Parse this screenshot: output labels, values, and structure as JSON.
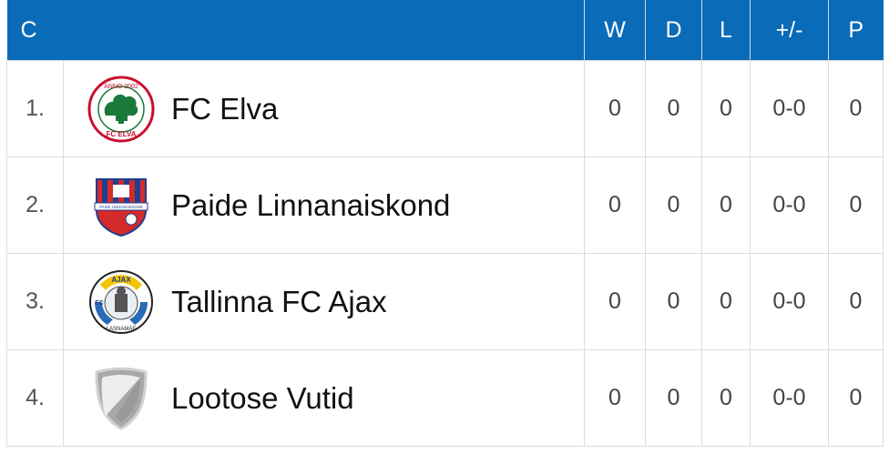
{
  "table": {
    "group_label": "C",
    "columns": [
      "W",
      "D",
      "L",
      "+/-",
      "P"
    ],
    "rows": [
      {
        "pos": "1.",
        "team": "FC Elva",
        "logo": "fc-elva-crest-icon",
        "w": "0",
        "d": "0",
        "l": "0",
        "gd": "0-0",
        "p": "0"
      },
      {
        "pos": "2.",
        "team": "Paide Linnanaiskond",
        "logo": "paide-crest-icon",
        "w": "0",
        "d": "0",
        "l": "0",
        "gd": "0-0",
        "p": "0"
      },
      {
        "pos": "3.",
        "team": "Tallinna FC Ajax",
        "logo": "ajax-crest-icon",
        "w": "0",
        "d": "0",
        "l": "0",
        "gd": "0-0",
        "p": "0"
      },
      {
        "pos": "4.",
        "team": "Lootose Vutid",
        "logo": "generic-shield-icon",
        "w": "0",
        "d": "0",
        "l": "0",
        "gd": "0-0",
        "p": "0"
      }
    ]
  },
  "logos": {
    "elva_top_text": "ANNO 2002",
    "elva_bottom_text": "FC ELVA",
    "paide_banner_text": "PAIDE LINNANAISKOND",
    "ajax_top_text": "AJAX",
    "ajax_side_text": "FC",
    "ajax_bottom_text": "LASNAMÄE"
  },
  "colors": {
    "header_bg": "#0a6bb8",
    "header_text": "#ffffff",
    "grid": "#dcdcdc",
    "elva_green": "#1a7a3a",
    "elva_red": "#c8102e",
    "paide_red": "#d42a2a",
    "paide_blue": "#1f3f8f",
    "ajax_blue": "#2a6ab5"
  }
}
